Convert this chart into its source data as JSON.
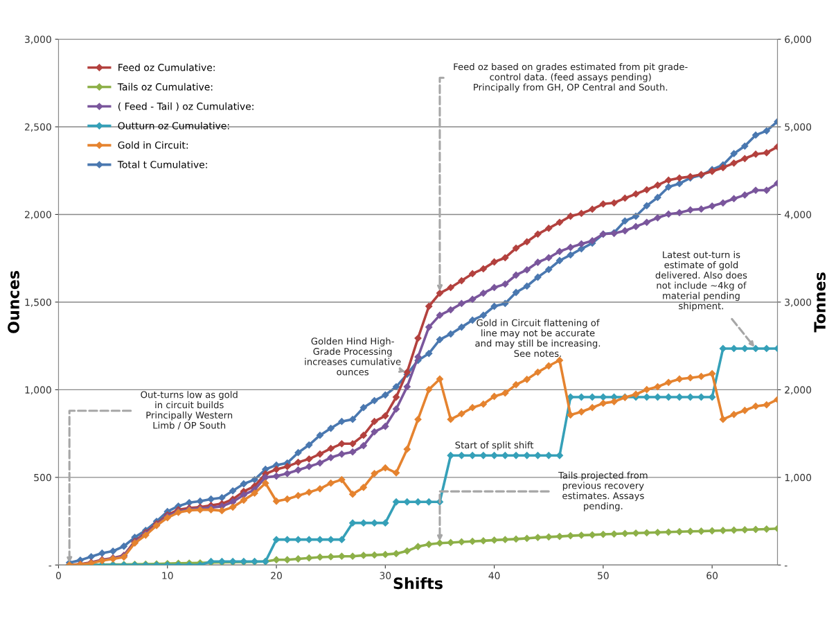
{
  "chart_data": {
    "type": "line",
    "xlabel": "Shifts",
    "ylabel": "Ounces",
    "y2label": "Tonnes",
    "x": [
      1,
      2,
      3,
      4,
      5,
      6,
      7,
      8,
      9,
      10,
      11,
      12,
      13,
      14,
      15,
      16,
      17,
      18,
      19,
      20,
      21,
      22,
      23,
      24,
      25,
      26,
      27,
      28,
      29,
      30,
      31,
      32,
      33,
      34,
      35,
      36,
      37,
      38,
      39,
      40,
      41,
      42,
      43,
      44,
      45,
      46,
      47,
      48,
      49,
      50,
      51,
      52,
      53,
      54,
      55,
      56,
      57,
      58,
      59,
      60,
      61,
      62,
      63,
      64,
      65,
      66
    ],
    "xlim": [
      0,
      66
    ],
    "xticks": [
      0,
      10,
      20,
      30,
      40,
      50,
      60
    ],
    "ylim": [
      0,
      3000
    ],
    "yticks": [
      {
        "value": 0,
        "label": "-"
      },
      500,
      {
        "value": 1000,
        "label": "1,000"
      },
      {
        "value": 1500,
        "label": "1,500"
      },
      {
        "value": 2000,
        "label": "2,000"
      },
      {
        "value": 2500,
        "label": "2,500"
      },
      {
        "value": 3000,
        "label": "3,000"
      }
    ],
    "y2lim": [
      0,
      6000
    ],
    "y2ticks": [
      {
        "value": 0,
        "label": "-"
      },
      {
        "value": 1000,
        "label": "1,000"
      },
      {
        "value": 2000,
        "label": "2,000"
      },
      {
        "value": 3000,
        "label": "3,000"
      },
      {
        "value": 4000,
        "label": "4,000"
      },
      {
        "value": 5000,
        "label": "5,000"
      },
      {
        "value": 6000,
        "label": "6,000"
      }
    ],
    "grid": "y",
    "legend": "top left",
    "marker": "diamond",
    "line_style": "solid",
    "series": [
      {
        "name": "Feed oz Cumulative:",
        "color": "#b3413e",
        "values": [
          0,
          5,
          15,
          30,
          40,
          55,
          135,
          185,
          235,
          285,
          315,
          325,
          330,
          340,
          350,
          375,
          420,
          450,
          520,
          546,
          562,
          586,
          605,
          633,
          665,
          692,
          692,
          740,
          819,
          851,
          958,
          1100,
          1294,
          1476,
          1551,
          1583,
          1622,
          1662,
          1690,
          1729,
          1753,
          1808,
          1844,
          1888,
          1921,
          1955,
          1990,
          2006,
          2030,
          2060,
          2066,
          2093,
          2117,
          2141,
          2167,
          2196,
          2208,
          2216,
          2228,
          2246,
          2267,
          2293,
          2319,
          2344,
          2352,
          2386
        ]
      },
      {
        "name": "Tails oz Cumulative:",
        "color": "#8db048",
        "values": [
          0,
          0,
          0,
          2,
          3,
          3,
          4,
          5,
          6,
          8,
          10,
          11,
          12,
          14,
          15,
          16,
          17,
          18,
          20,
          30,
          30,
          35,
          40,
          45,
          47,
          50,
          50,
          55,
          57,
          60,
          65,
          80,
          105,
          118,
          125,
          128,
          132,
          135,
          138,
          142,
          145,
          148,
          152,
          157,
          160,
          163,
          167,
          170,
          172,
          175,
          177,
          180,
          182,
          184,
          186,
          188,
          190,
          192,
          193,
          195,
          197,
          199,
          201,
          203,
          205,
          208
        ]
      },
      {
        "name": "( Feed - Tail ) oz Cumulative:",
        "color": "#7a569c",
        "values": [
          0,
          3,
          12,
          28,
          38,
          52,
          130,
          178,
          228,
          278,
          305,
          318,
          322,
          328,
          335,
          360,
          400,
          430,
          500,
          507,
          522,
          542,
          562,
          582,
          613,
          633,
          645,
          681,
          760,
          791,
          890,
          1017,
          1187,
          1357,
          1425,
          1456,
          1492,
          1516,
          1551,
          1583,
          1603,
          1654,
          1684,
          1727,
          1753,
          1789,
          1812,
          1832,
          1850,
          1888,
          1892,
          1907,
          1931,
          1955,
          1981,
          2002,
          2010,
          2026,
          2031,
          2048,
          2066,
          2090,
          2111,
          2138,
          2138,
          2178
        ]
      },
      {
        "name": "Outturn oz Cumulative:",
        "color": "#35a0b8",
        "values": [
          0,
          0,
          0,
          0,
          0,
          0,
          0,
          0,
          0,
          0,
          0,
          0,
          0,
          20,
          20,
          20,
          20,
          20,
          20,
          145,
          145,
          145,
          145,
          145,
          145,
          145,
          240,
          240,
          240,
          240,
          360,
          360,
          360,
          360,
          360,
          625,
          625,
          625,
          625,
          625,
          625,
          625,
          625,
          625,
          625,
          625,
          958,
          958,
          958,
          958,
          958,
          958,
          958,
          958,
          958,
          958,
          958,
          958,
          958,
          958,
          1235,
          1235,
          1235,
          1235,
          1235,
          1235
        ]
      },
      {
        "name": "Gold in Circuit:",
        "color": "#e5832f",
        "values": [
          0,
          3,
          10,
          25,
          35,
          45,
          125,
          170,
          225,
          270,
          300,
          312,
          315,
          315,
          310,
          330,
          370,
          410,
          467,
          364,
          376,
          396,
          415,
          435,
          467,
          487,
          404,
          443,
          522,
          554,
          526,
          661,
          831,
          1001,
          1061,
          831,
          863,
          898,
          918,
          962,
          981,
          1029,
          1059,
          1100,
          1136,
          1168,
          856,
          874,
          898,
          923,
          932,
          956,
          974,
          1001,
          1017,
          1042,
          1061,
          1068,
          1076,
          1092,
          831,
          859,
          882,
          906,
          914,
          944
        ]
      },
      {
        "name": "Total t Cumulative:",
        "color": "#4a78b0",
        "axis": "y2",
        "values": [
          26,
          55,
          95,
          135,
          158,
          214,
          316,
          395,
          498,
          610,
          672,
          712,
          728,
          752,
          768,
          846,
          926,
          974,
          1092,
          1140,
          1164,
          1282,
          1370,
          1480,
          1560,
          1638,
          1662,
          1796,
          1876,
          1940,
          2034,
          2176,
          2334,
          2414,
          2572,
          2636,
          2714,
          2794,
          2850,
          2952,
          2984,
          3110,
          3182,
          3284,
          3372,
          3474,
          3538,
          3608,
          3672,
          3776,
          3792,
          3926,
          3980,
          4100,
          4194,
          4314,
          4352,
          4416,
          4448,
          4512,
          4566,
          4694,
          4780,
          4906,
          4954,
          5060
        ]
      }
    ],
    "annotations": [
      {
        "text": "Out-turns low as gold\nin circuit builds\nPrincipally Western\nLimb / OP South",
        "x": 1,
        "y": 0
      },
      {
        "text": "Golden Hind High-\nGrade Processing\nincreases cumulative\nounces",
        "x": 32,
        "y": 1100
      },
      {
        "text": "Feed oz based on grades estimated from pit grade-\ncontrol data. (feed assays pending)\nPrincipally from GH, OP Central and South.",
        "x": 35,
        "y": 1551
      },
      "Gold in Circuit flattening of\nline may not be accurate\nand may still be increasing.\nSee notes.",
      {
        "text": "Latest out-turn is\nestimate of gold\ndelivered. Also does\nnot include ~4kg of\nmaterial pending\nshipment.",
        "x": 64,
        "y": 1235
      },
      "Start of split shift",
      {
        "text": "Tails projected from\nprevious recovery\nestimates. Assays\npending.",
        "x": 35,
        "y": 125
      }
    ]
  }
}
